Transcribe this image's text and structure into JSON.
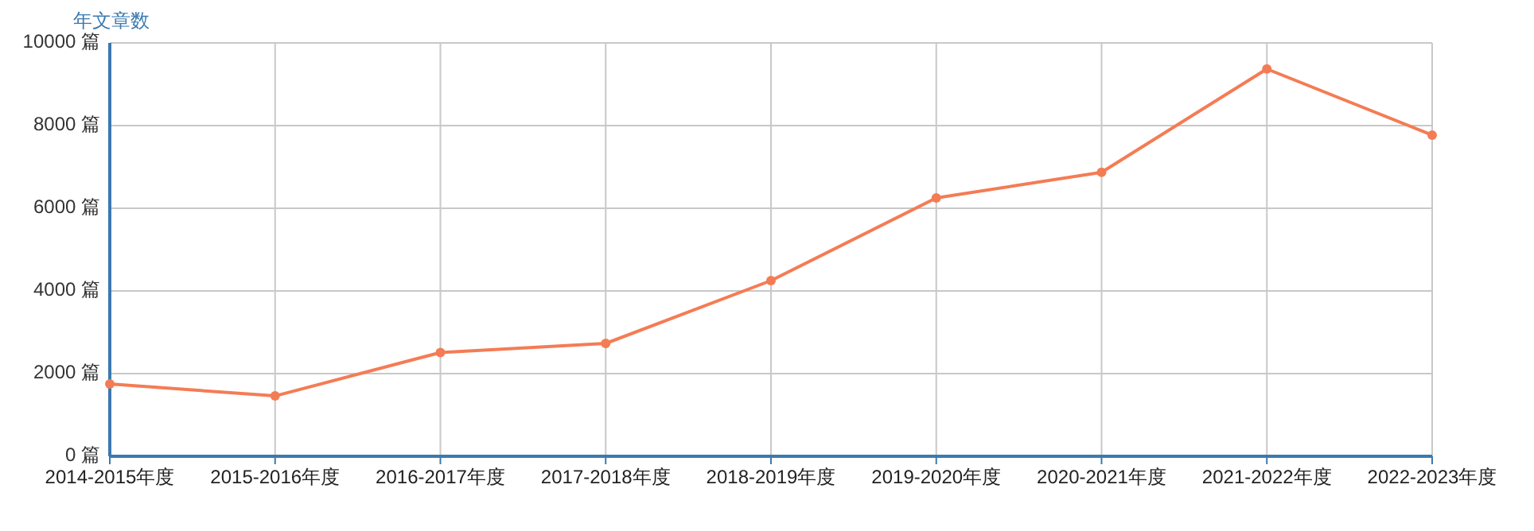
{
  "chart_data": {
    "type": "line",
    "ylabel": "年文章数",
    "categories": [
      "2014-2015年度",
      "2015-2016年度",
      "2016-2017年度",
      "2017-2018年度",
      "2018-2019年度",
      "2019-2020年度",
      "2020-2021年度",
      "2021-2022年度",
      "2022-2023年度"
    ],
    "series": [
      {
        "color": "#f47c54",
        "values": [
          1750,
          1460,
          2510,
          2730,
          4250,
          6250,
          6870,
          9370,
          7770
        ]
      }
    ],
    "ylim": [
      0,
      10000
    ],
    "yticks": [
      {
        "value": 0,
        "label": "0 篇"
      },
      {
        "value": 2000,
        "label": "2000 篇"
      },
      {
        "value": 4000,
        "label": "4000 篇"
      },
      {
        "value": 6000,
        "label": "6000 篇"
      },
      {
        "value": 8000,
        "label": "8000 篇"
      },
      {
        "value": 10000,
        "label": "10000 篇"
      }
    ],
    "grid": true,
    "marker": "circle",
    "line_style": "solid"
  }
}
